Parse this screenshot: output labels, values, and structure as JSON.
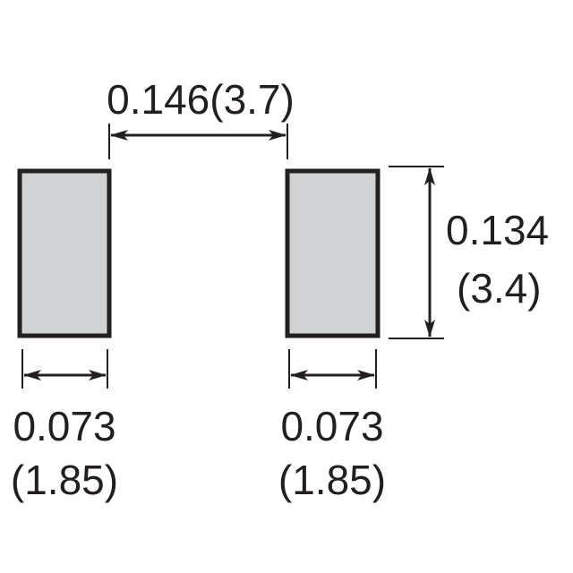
{
  "colors": {
    "pad_fill": "#d1d2d4",
    "pad_stroke": "#231f20",
    "line": "#231f20",
    "text": "#231f20",
    "background": "#ffffff"
  },
  "dimensions": {
    "spacing": {
      "inch": "0.146(3.7)"
    },
    "height": {
      "inch": "0.134",
      "mm": "(3.4)"
    },
    "left_pad_width": {
      "inch": "0.073",
      "mm": "(1.85)"
    },
    "right_pad_width": {
      "inch": "0.073",
      "mm": "(1.85)"
    }
  }
}
